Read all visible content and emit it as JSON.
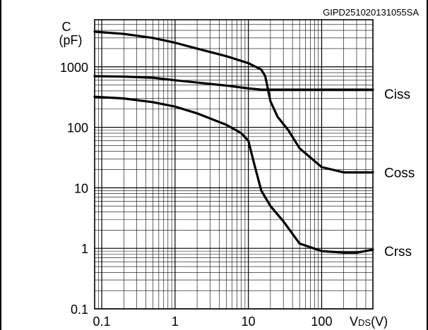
{
  "chart_data": {
    "type": "line",
    "figure_code": "GIPD251020131055SA",
    "y_axis_label_top": "C",
    "y_axis_label_unit": "(pF)",
    "x_axis_label_main": "V",
    "x_axis_label_sub": "DS",
    "x_axis_label_unit": "(V)",
    "x_scale": "log",
    "y_scale": "log",
    "xlim": [
      0.08,
      500
    ],
    "ylim": [
      0.1,
      6000
    ],
    "grid": true,
    "x_tick_values": [
      0.1,
      1,
      10,
      100
    ],
    "x_tick_labels": [
      "0.1",
      "1",
      "10",
      "100"
    ],
    "y_tick_values": [
      0.1,
      1,
      10,
      100,
      1000
    ],
    "y_tick_labels": [
      "0.1",
      "1",
      "10",
      "100",
      "1000"
    ],
    "series": [
      {
        "name": "Ciss",
        "x": [
          0.08,
          0.2,
          0.5,
          1,
          2,
          5,
          10,
          15,
          20,
          50,
          100,
          200,
          500
        ],
        "y": [
          700,
          690,
          660,
          600,
          550,
          490,
          440,
          420,
          420,
          420,
          420,
          420,
          420
        ]
      },
      {
        "name": "Coss",
        "x": [
          0.08,
          0.2,
          0.5,
          1,
          2,
          5,
          10,
          15,
          17,
          20,
          25,
          35,
          50,
          100,
          200,
          500
        ],
        "y": [
          3800,
          3500,
          3000,
          2500,
          2000,
          1500,
          1150,
          900,
          700,
          270,
          150,
          90,
          45,
          22,
          18,
          18
        ]
      },
      {
        "name": "Crss",
        "x": [
          0.08,
          0.2,
          0.5,
          1,
          2,
          5,
          8,
          10,
          12,
          15,
          20,
          30,
          50,
          100,
          200,
          300,
          500
        ],
        "y": [
          320,
          300,
          260,
          220,
          170,
          110,
          80,
          60,
          25,
          9,
          5,
          2.8,
          1.2,
          0.9,
          0.85,
          0.85,
          0.95
        ]
      }
    ]
  }
}
